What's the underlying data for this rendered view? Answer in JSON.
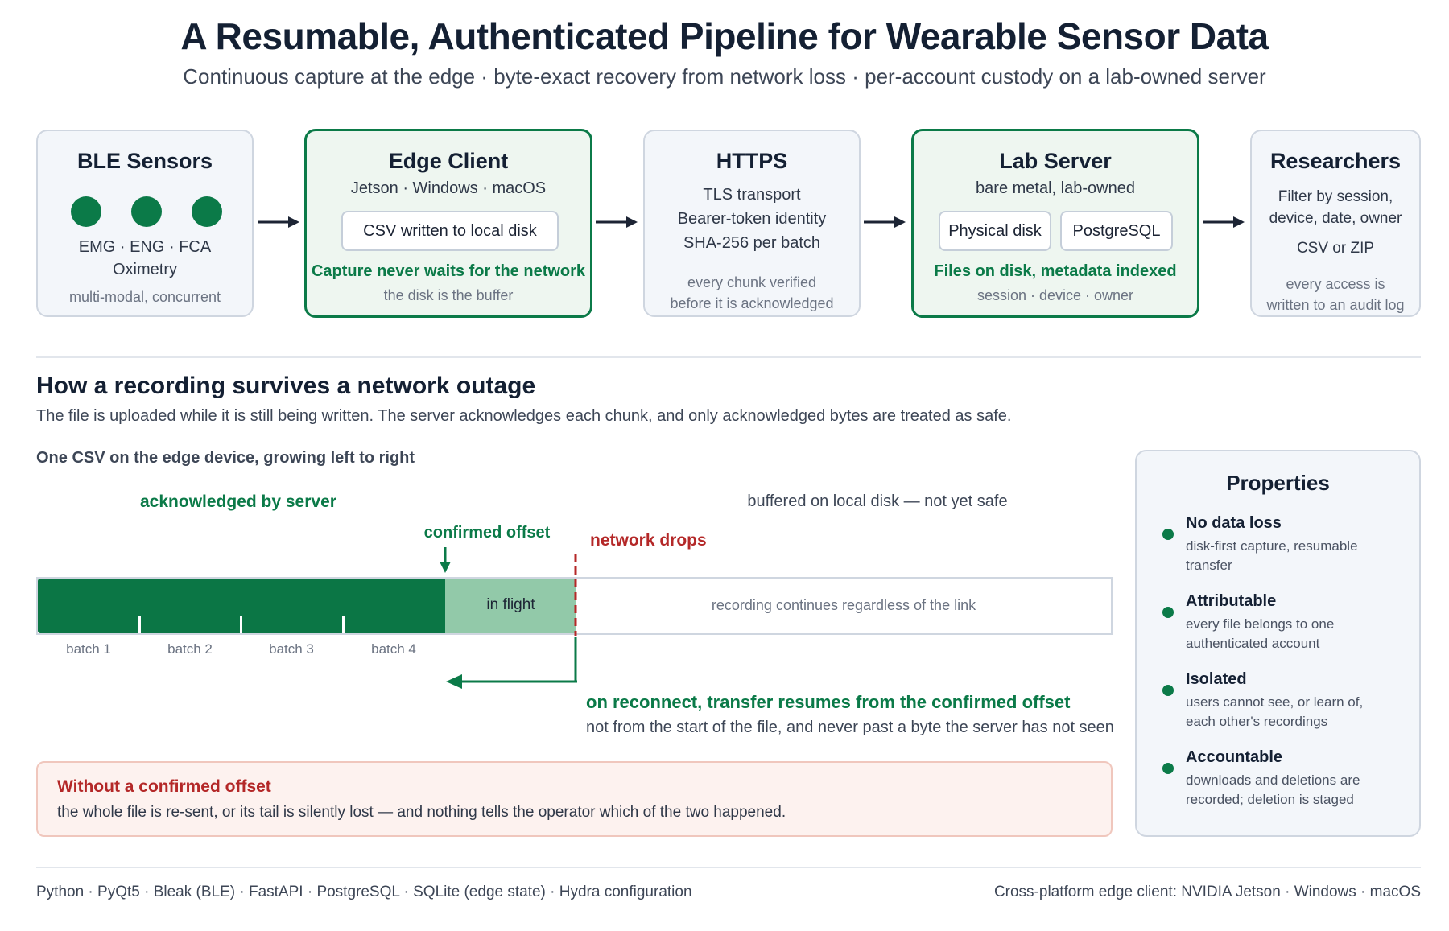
{
  "header": {
    "title": "A Resumable, Authenticated Pipeline for Wearable Sensor Data",
    "subtitle": "Continuous capture at the edge · byte-exact recovery from network loss · per-account custody on a lab-owned server"
  },
  "pipeline": {
    "sensors": {
      "title": "BLE Sensors",
      "modalities": "EMG · ENG · FCA",
      "modalities2": "Oximetry",
      "note": "multi-modal, concurrent"
    },
    "edge": {
      "title": "Edge Client",
      "platforms": "Jetson · Windows · macOS",
      "pill": "CSV written to local disk",
      "highlight": "Capture never waits for the network",
      "note": "the disk is the buffer"
    },
    "https": {
      "title": "HTTPS",
      "line1": "TLS transport",
      "line2": "Bearer-token identity",
      "line3": "SHA-256 per batch",
      "note1": "every chunk verified",
      "note2": "before it is acknowledged"
    },
    "server": {
      "title": "Lab Server",
      "sub": "bare metal, lab-owned",
      "pill1": "Physical disk",
      "pill2": "PostgreSQL",
      "highlight": "Files on disk, metadata indexed",
      "note": "session · device · owner"
    },
    "researchers": {
      "title": "Researchers",
      "line1": "Filter by session,",
      "line2": "device, date, owner",
      "line3": "CSV or ZIP",
      "note1": "every access is",
      "note2": "written to an audit log"
    }
  },
  "outage": {
    "title": "How a recording survives a network outage",
    "description": "The file is uploaded while it is still being written. The server acknowledges each chunk, and only acknowledged bytes are treated as safe.",
    "csv_label": "One CSV on the edge device, growing left to right",
    "ack_label": "acknowledged by server",
    "buffered_label": "buffered on local disk — not yet safe",
    "confirmed_offset": "confirmed offset",
    "network_drops": "network drops",
    "in_flight": "in flight",
    "recording_continues": "recording continues regardless of the link",
    "batches": [
      "batch 1",
      "batch 2",
      "batch 3",
      "batch 4"
    ],
    "reconnect_title": "on reconnect, transfer resumes from the confirmed offset",
    "reconnect_desc": "not from the start of the file, and never past a byte the server has not seen"
  },
  "warning": {
    "title": "Without a confirmed offset",
    "description": "the whole file is re-sent, or its tail is silently lost — and nothing tells the operator which of the two happened."
  },
  "properties": {
    "title": "Properties",
    "items": [
      {
        "title": "No data loss",
        "line1": "disk-first capture, resumable",
        "line2": "transfer"
      },
      {
        "title": "Attributable",
        "line1": "every file belongs to one",
        "line2": "authenticated account"
      },
      {
        "title": "Isolated",
        "line1": "users cannot see, or learn of,",
        "line2": "each other's recordings"
      },
      {
        "title": "Accountable",
        "line1": "downloads and deletions are",
        "line2": "recorded; deletion is staged"
      }
    ]
  },
  "footer": {
    "left": "Python · PyQt5 · Bleak (BLE) · FastAPI · PostgreSQL · SQLite (edge state) · Hydra configuration",
    "right": "Cross-platform edge client: NVIDIA Jetson · Windows · macOS"
  },
  "colors": {
    "accent_green": "#0b7a48",
    "in_flight": "#92c9a9",
    "alert_red": "#b42828",
    "box_fill": "#f3f6fa"
  }
}
